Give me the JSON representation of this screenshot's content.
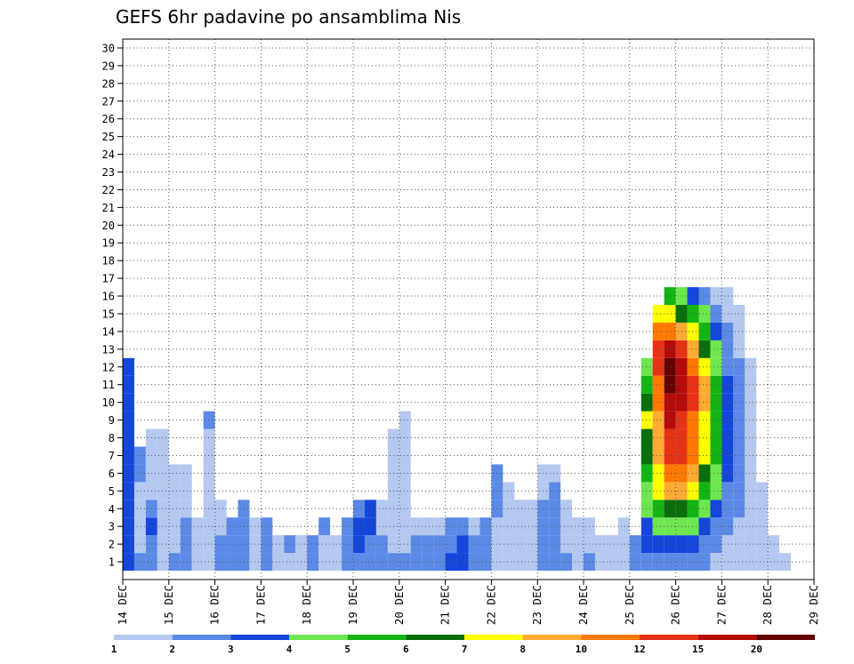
{
  "chart_data": {
    "type": "heatmap",
    "title": "GEFS 6hr padavine po ansamblima Nis",
    "x_tick_labels": [
      "14 DEC",
      "15 DEC",
      "16 DEC",
      "17 DEC",
      "18 DEC",
      "19 DEC",
      "20 DEC",
      "21 DEC",
      "22 DEC",
      "23 DEC",
      "24 DEC",
      "25 DEC",
      "26 DEC",
      "27 DEC",
      "28 DEC",
      "29 DEC"
    ],
    "y_tick_labels": [
      "1",
      "2",
      "3",
      "4",
      "5",
      "6",
      "7",
      "8",
      "9",
      "10",
      "11",
      "12",
      "13",
      "14",
      "15",
      "16",
      "17",
      "18",
      "19",
      "20",
      "21",
      "22",
      "23",
      "24",
      "25",
      "26",
      "27",
      "28",
      "29",
      "30"
    ],
    "xlim": [
      0,
      60
    ],
    "ylim": [
      0,
      30.5
    ],
    "grid": true,
    "legend": {
      "placement": "bottom",
      "labels": [
        "1",
        "2",
        "3",
        "4",
        "5",
        "6",
        "7",
        "8",
        "10",
        "12",
        "15",
        "20"
      ],
      "colors": [
        "#b4c8f0",
        "#5a8ae6",
        "#1446dc",
        "#6ee650",
        "#14b414",
        "#0a6e0a",
        "#ffff00",
        "#ffaa32",
        "#ff7800",
        "#e63214",
        "#b40a0a",
        "#640000"
      ]
    },
    "cells": [
      [
        0,
        1,
        3
      ],
      [
        0,
        2,
        3
      ],
      [
        0,
        3,
        3
      ],
      [
        0,
        4,
        3
      ],
      [
        0,
        5,
        3
      ],
      [
        0,
        6,
        3
      ],
      [
        0,
        7,
        3
      ],
      [
        0,
        8,
        3
      ],
      [
        0,
        9,
        3
      ],
      [
        0,
        10,
        3
      ],
      [
        0,
        11,
        3
      ],
      [
        0,
        12,
        3
      ],
      [
        1,
        1,
        2
      ],
      [
        1,
        2,
        1
      ],
      [
        1,
        3,
        1
      ],
      [
        1,
        4,
        1
      ],
      [
        1,
        5,
        1
      ],
      [
        1,
        6,
        2
      ],
      [
        1,
        7,
        2
      ],
      [
        2,
        1,
        2
      ],
      [
        2,
        2,
        2
      ],
      [
        2,
        3,
        3
      ],
      [
        2,
        4,
        2
      ],
      [
        2,
        5,
        1
      ],
      [
        2,
        6,
        1
      ],
      [
        2,
        7,
        1
      ],
      [
        2,
        8,
        1
      ],
      [
        3,
        1,
        1
      ],
      [
        3,
        2,
        1
      ],
      [
        3,
        3,
        1
      ],
      [
        3,
        4,
        1
      ],
      [
        3,
        5,
        1
      ],
      [
        3,
        6,
        1
      ],
      [
        3,
        7,
        1
      ],
      [
        3,
        8,
        1
      ],
      [
        4,
        1,
        2
      ],
      [
        4,
        2,
        1
      ],
      [
        4,
        3,
        1
      ],
      [
        4,
        4,
        1
      ],
      [
        4,
        5,
        1
      ],
      [
        4,
        6,
        1
      ],
      [
        5,
        1,
        2
      ],
      [
        5,
        2,
        2
      ],
      [
        5,
        3,
        2
      ],
      [
        5,
        4,
        1
      ],
      [
        5,
        5,
        1
      ],
      [
        5,
        6,
        1
      ],
      [
        6,
        1,
        1
      ],
      [
        6,
        2,
        1
      ],
      [
        6,
        3,
        1
      ],
      [
        7,
        1,
        1
      ],
      [
        7,
        2,
        1
      ],
      [
        7,
        3,
        1
      ],
      [
        7,
        4,
        1
      ],
      [
        7,
        5,
        1
      ],
      [
        7,
        6,
        1
      ],
      [
        7,
        7,
        1
      ],
      [
        7,
        8,
        1
      ],
      [
        7,
        9,
        2
      ],
      [
        8,
        1,
        2
      ],
      [
        8,
        2,
        2
      ],
      [
        8,
        3,
        1
      ],
      [
        8,
        4,
        1
      ],
      [
        9,
        1,
        2
      ],
      [
        9,
        2,
        2
      ],
      [
        9,
        3,
        2
      ],
      [
        10,
        1,
        2
      ],
      [
        10,
        2,
        2
      ],
      [
        10,
        3,
        2
      ],
      [
        10,
        4,
        2
      ],
      [
        11,
        1,
        1
      ],
      [
        11,
        2,
        1
      ],
      [
        11,
        3,
        1
      ],
      [
        12,
        1,
        2
      ],
      [
        12,
        2,
        2
      ],
      [
        12,
        3,
        2
      ],
      [
        13,
        1,
        1
      ],
      [
        13,
        2,
        1
      ],
      [
        14,
        1,
        1
      ],
      [
        14,
        2,
        2
      ],
      [
        15,
        1,
        1
      ],
      [
        15,
        2,
        1
      ],
      [
        16,
        1,
        2
      ],
      [
        16,
        2,
        2
      ],
      [
        17,
        1,
        1
      ],
      [
        17,
        2,
        1
      ],
      [
        17,
        3,
        2
      ],
      [
        18,
        1,
        1
      ],
      [
        18,
        2,
        1
      ],
      [
        19,
        1,
        2
      ],
      [
        19,
        2,
        2
      ],
      [
        19,
        3,
        2
      ],
      [
        20,
        1,
        2
      ],
      [
        20,
        2,
        3
      ],
      [
        20,
        3,
        3
      ],
      [
        20,
        4,
        2
      ],
      [
        21,
        1,
        2
      ],
      [
        21,
        2,
        2
      ],
      [
        21,
        3,
        3
      ],
      [
        21,
        4,
        3
      ],
      [
        22,
        1,
        2
      ],
      [
        22,
        2,
        2
      ],
      [
        22,
        3,
        1
      ],
      [
        22,
        4,
        1
      ],
      [
        23,
        1,
        2
      ],
      [
        23,
        2,
        1
      ],
      [
        23,
        3,
        1
      ],
      [
        23,
        4,
        1
      ],
      [
        23,
        5,
        1
      ],
      [
        23,
        6,
        1
      ],
      [
        23,
        7,
        1
      ],
      [
        23,
        8,
        1
      ],
      [
        24,
        1,
        2
      ],
      [
        24,
        2,
        1
      ],
      [
        24,
        3,
        1
      ],
      [
        24,
        4,
        1
      ],
      [
        24,
        5,
        1
      ],
      [
        24,
        6,
        1
      ],
      [
        24,
        7,
        1
      ],
      [
        24,
        8,
        1
      ],
      [
        24,
        9,
        1
      ],
      [
        25,
        1,
        2
      ],
      [
        25,
        2,
        2
      ],
      [
        25,
        3,
        1
      ],
      [
        26,
        1,
        2
      ],
      [
        26,
        2,
        2
      ],
      [
        26,
        3,
        1
      ],
      [
        27,
        1,
        2
      ],
      [
        27,
        2,
        2
      ],
      [
        27,
        3,
        1
      ],
      [
        28,
        1,
        3
      ],
      [
        28,
        2,
        2
      ],
      [
        28,
        3,
        2
      ],
      [
        29,
        1,
        3
      ],
      [
        29,
        2,
        3
      ],
      [
        29,
        3,
        2
      ],
      [
        30,
        1,
        2
      ],
      [
        30,
        2,
        2
      ],
      [
        30,
        3,
        1
      ],
      [
        31,
        1,
        2
      ],
      [
        31,
        2,
        2
      ],
      [
        31,
        3,
        2
      ],
      [
        32,
        1,
        1
      ],
      [
        32,
        2,
        1
      ],
      [
        32,
        3,
        1
      ],
      [
        32,
        4,
        2
      ],
      [
        32,
        5,
        2
      ],
      [
        32,
        6,
        2
      ],
      [
        33,
        1,
        1
      ],
      [
        33,
        2,
        1
      ],
      [
        33,
        3,
        1
      ],
      [
        33,
        4,
        1
      ],
      [
        33,
        5,
        1
      ],
      [
        34,
        1,
        1
      ],
      [
        34,
        2,
        1
      ],
      [
        34,
        3,
        1
      ],
      [
        34,
        4,
        1
      ],
      [
        35,
        1,
        1
      ],
      [
        35,
        2,
        1
      ],
      [
        35,
        3,
        1
      ],
      [
        35,
        4,
        1
      ],
      [
        36,
        1,
        2
      ],
      [
        36,
        2,
        2
      ],
      [
        36,
        3,
        2
      ],
      [
        36,
        4,
        2
      ],
      [
        36,
        5,
        1
      ],
      [
        36,
        6,
        1
      ],
      [
        37,
        1,
        2
      ],
      [
        37,
        2,
        2
      ],
      [
        37,
        3,
        2
      ],
      [
        37,
        4,
        2
      ],
      [
        37,
        5,
        2
      ],
      [
        37,
        6,
        1
      ],
      [
        38,
        1,
        2
      ],
      [
        38,
        2,
        1
      ],
      [
        38,
        3,
        1
      ],
      [
        38,
        4,
        1
      ],
      [
        39,
        1,
        1
      ],
      [
        39,
        2,
        1
      ],
      [
        39,
        3,
        1
      ],
      [
        40,
        1,
        2
      ],
      [
        40,
        2,
        1
      ],
      [
        40,
        3,
        1
      ],
      [
        41,
        1,
        1
      ],
      [
        41,
        2,
        1
      ],
      [
        42,
        1,
        1
      ],
      [
        42,
        2,
        1
      ],
      [
        43,
        1,
        1
      ],
      [
        43,
        2,
        1
      ],
      [
        43,
        3,
        1
      ],
      [
        44,
        1,
        2
      ],
      [
        44,
        2,
        2
      ],
      [
        45,
        1,
        2
      ],
      [
        45,
        2,
        3
      ],
      [
        45,
        3,
        3
      ],
      [
        45,
        4,
        4
      ],
      [
        45,
        5,
        4
      ],
      [
        45,
        6,
        5
      ],
      [
        45,
        7,
        6
      ],
      [
        45,
        8,
        6
      ],
      [
        45,
        9,
        7
      ],
      [
        45,
        10,
        6
      ],
      [
        45,
        11,
        5
      ],
      [
        45,
        12,
        4
      ],
      [
        46,
        1,
        2
      ],
      [
        46,
        2,
        3
      ],
      [
        46,
        3,
        4
      ],
      [
        46,
        4,
        5
      ],
      [
        46,
        5,
        7
      ],
      [
        46,
        6,
        7
      ],
      [
        46,
        7,
        8
      ],
      [
        46,
        8,
        8
      ],
      [
        46,
        9,
        8
      ],
      [
        46,
        10,
        9
      ],
      [
        46,
        11,
        9
      ],
      [
        46,
        12,
        10
      ],
      [
        46,
        13,
        10
      ],
      [
        46,
        14,
        9
      ],
      [
        46,
        15,
        7
      ],
      [
        47,
        1,
        2
      ],
      [
        47,
        2,
        3
      ],
      [
        47,
        3,
        4
      ],
      [
        47,
        4,
        6
      ],
      [
        47,
        5,
        8
      ],
      [
        47,
        6,
        9
      ],
      [
        47,
        7,
        10
      ],
      [
        47,
        8,
        10
      ],
      [
        47,
        9,
        11
      ],
      [
        47,
        10,
        11
      ],
      [
        47,
        11,
        12
      ],
      [
        47,
        12,
        12
      ],
      [
        47,
        13,
        11
      ],
      [
        47,
        14,
        9
      ],
      [
        47,
        15,
        7
      ],
      [
        47,
        16,
        5
      ],
      [
        48,
        1,
        2
      ],
      [
        48,
        2,
        3
      ],
      [
        48,
        3,
        4
      ],
      [
        48,
        4,
        6
      ],
      [
        48,
        5,
        8
      ],
      [
        48,
        6,
        9
      ],
      [
        48,
        7,
        10
      ],
      [
        48,
        8,
        10
      ],
      [
        48,
        9,
        10
      ],
      [
        48,
        10,
        11
      ],
      [
        48,
        11,
        11
      ],
      [
        48,
        12,
        11
      ],
      [
        48,
        13,
        10
      ],
      [
        48,
        14,
        8
      ],
      [
        48,
        15,
        6
      ],
      [
        48,
        16,
        4
      ],
      [
        49,
        1,
        2
      ],
      [
        49,
        2,
        3
      ],
      [
        49,
        3,
        4
      ],
      [
        49,
        4,
        5
      ],
      [
        49,
        5,
        7
      ],
      [
        49,
        6,
        8
      ],
      [
        49,
        7,
        9
      ],
      [
        49,
        8,
        9
      ],
      [
        49,
        9,
        9
      ],
      [
        49,
        10,
        10
      ],
      [
        49,
        11,
        10
      ],
      [
        49,
        12,
        9
      ],
      [
        49,
        13,
        8
      ],
      [
        49,
        14,
        7
      ],
      [
        49,
        15,
        5
      ],
      [
        49,
        16,
        3
      ],
      [
        50,
        1,
        2
      ],
      [
        50,
        2,
        2
      ],
      [
        50,
        3,
        3
      ],
      [
        50,
        4,
        4
      ],
      [
        50,
        5,
        5
      ],
      [
        50,
        6,
        6
      ],
      [
        50,
        7,
        7
      ],
      [
        50,
        8,
        7
      ],
      [
        50,
        9,
        7
      ],
      [
        50,
        10,
        8
      ],
      [
        50,
        11,
        8
      ],
      [
        50,
        12,
        7
      ],
      [
        50,
        13,
        6
      ],
      [
        50,
        14,
        5
      ],
      [
        50,
        15,
        4
      ],
      [
        50,
        16,
        2
      ],
      [
        51,
        1,
        1
      ],
      [
        51,
        2,
        2
      ],
      [
        51,
        3,
        2
      ],
      [
        51,
        4,
        3
      ],
      [
        51,
        5,
        4
      ],
      [
        51,
        6,
        4
      ],
      [
        51,
        7,
        5
      ],
      [
        51,
        8,
        5
      ],
      [
        51,
        9,
        5
      ],
      [
        51,
        10,
        5
      ],
      [
        51,
        11,
        5
      ],
      [
        51,
        12,
        4
      ],
      [
        51,
        13,
        4
      ],
      [
        51,
        14,
        3
      ],
      [
        51,
        15,
        2
      ],
      [
        51,
        16,
        1
      ],
      [
        52,
        1,
        1
      ],
      [
        52,
        2,
        1
      ],
      [
        52,
        3,
        2
      ],
      [
        52,
        4,
        2
      ],
      [
        52,
        5,
        2
      ],
      [
        52,
        6,
        3
      ],
      [
        52,
        7,
        3
      ],
      [
        52,
        8,
        3
      ],
      [
        52,
        9,
        3
      ],
      [
        52,
        10,
        3
      ],
      [
        52,
        11,
        3
      ],
      [
        52,
        12,
        2
      ],
      [
        52,
        13,
        2
      ],
      [
        52,
        14,
        2
      ],
      [
        52,
        15,
        1
      ],
      [
        52,
        16,
        1
      ],
      [
        53,
        1,
        1
      ],
      [
        53,
        2,
        1
      ],
      [
        53,
        3,
        1
      ],
      [
        53,
        4,
        2
      ],
      [
        53,
        5,
        2
      ],
      [
        53,
        6,
        2
      ],
      [
        53,
        7,
        2
      ],
      [
        53,
        8,
        2
      ],
      [
        53,
        9,
        2
      ],
      [
        53,
        10,
        2
      ],
      [
        53,
        11,
        2
      ],
      [
        53,
        12,
        2
      ],
      [
        53,
        13,
        1
      ],
      [
        53,
        14,
        1
      ],
      [
        53,
        15,
        1
      ],
      [
        54,
        1,
        1
      ],
      [
        54,
        2,
        1
      ],
      [
        54,
        3,
        1
      ],
      [
        54,
        4,
        1
      ],
      [
        54,
        5,
        1
      ],
      [
        54,
        6,
        1
      ],
      [
        54,
        7,
        1
      ],
      [
        54,
        8,
        1
      ],
      [
        54,
        9,
        1
      ],
      [
        54,
        10,
        1
      ],
      [
        54,
        11,
        1
      ],
      [
        54,
        12,
        1
      ],
      [
        55,
        1,
        1
      ],
      [
        55,
        2,
        1
      ],
      [
        55,
        3,
        1
      ],
      [
        55,
        4,
        1
      ],
      [
        55,
        5,
        1
      ],
      [
        56,
        1,
        1
      ],
      [
        56,
        2,
        1
      ],
      [
        57,
        1,
        1
      ]
    ]
  }
}
